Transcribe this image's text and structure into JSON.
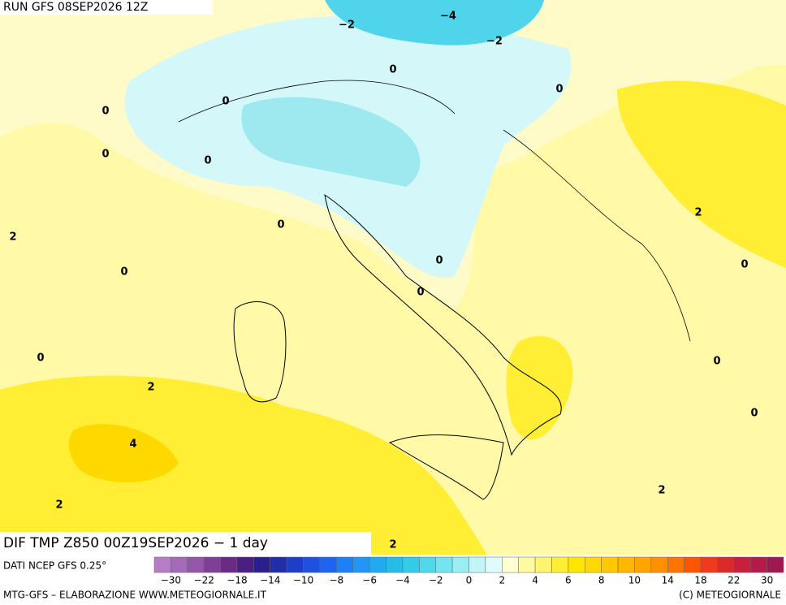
{
  "header": {
    "run": "RUN GFS 08SEP2026 12Z"
  },
  "map": {
    "contour_labels": [
      "−2",
      "−4",
      "−2",
      "0",
      "0",
      "0",
      "0",
      "0",
      "0",
      "2",
      "0",
      "2",
      "0",
      "0",
      "0",
      "0",
      "0",
      "0",
      "2",
      "0",
      "4",
      "2",
      "2",
      "2"
    ]
  },
  "title": "DIF TMP Z850 00Z19SEP2026 − 1 day",
  "source": "DATI NCEP GFS 0.25°",
  "colorbar": {
    "colors": [
      "#b77cc8",
      "#a46ab8",
      "#9456a8",
      "#7f3f96",
      "#6a2b85",
      "#4b1e82",
      "#2a1f8c",
      "#1f2fa8",
      "#1c3fc8",
      "#1f50e0",
      "#1e64f0",
      "#1f7ff5",
      "#2196f5",
      "#22aaf0",
      "#27bce8",
      "#33cce8",
      "#4fd8ec",
      "#73e3ef",
      "#9aedf3",
      "#c2f5f7",
      "#e0fbfb",
      "#ffffd0",
      "#fffaa0",
      "#fff370",
      "#ffee33",
      "#ffe600",
      "#ffd800",
      "#ffc800",
      "#ffb800",
      "#ffa500",
      "#ff9000",
      "#ff7300",
      "#ff5500",
      "#f03a1c",
      "#dc2a2a",
      "#c8203c",
      "#b41a4a",
      "#a01850"
    ],
    "labels": [
      "−30",
      "−22",
      "−18",
      "−14",
      "−10",
      "−8",
      "−6",
      "−4",
      "−2",
      "0",
      "2",
      "4",
      "6",
      "8",
      "10",
      "14",
      "18",
      "22",
      "30"
    ]
  },
  "footer": {
    "left": "MTG-GFS – ELABORAZIONE WWW.METEOGIORNALE.IT",
    "right": "(C) METEOGIORNALE"
  }
}
